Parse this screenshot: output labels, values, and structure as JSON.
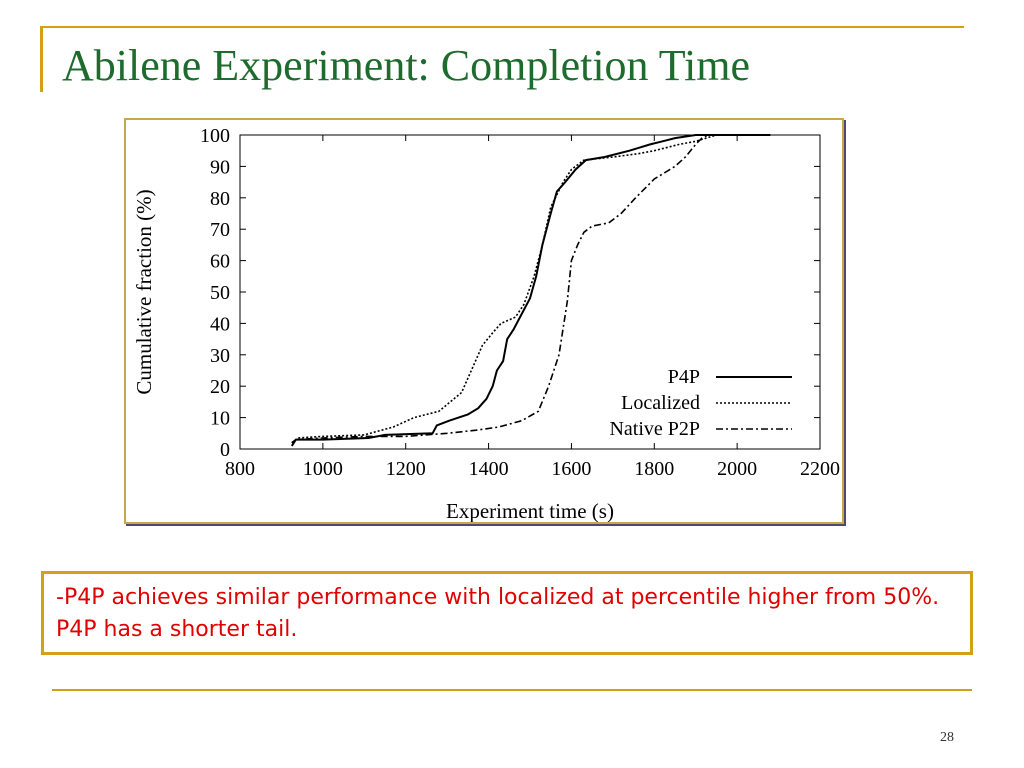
{
  "slide": {
    "title": "Abilene Experiment: Completion Time",
    "note": "-P4P achieves similar performance with localized at percentile higher from 50%. P4P has a shorter tail.",
    "page_number": "28"
  },
  "colors": {
    "title": "#1e6b2e",
    "accent": "#d4a017",
    "note_text": "#e00000",
    "frame_border": "#c8a64a"
  },
  "chart_data": {
    "type": "line",
    "title": "",
    "xlabel": "Experiment time (s)",
    "ylabel": "Cumulative fraction (%)",
    "xlim": [
      800,
      2200
    ],
    "ylim": [
      0,
      100
    ],
    "xticks": [
      800,
      1000,
      1200,
      1400,
      1600,
      1800,
      2000,
      2200
    ],
    "yticks": [
      0,
      10,
      20,
      30,
      40,
      50,
      60,
      70,
      80,
      90,
      100
    ],
    "grid": false,
    "legend_position": "bottom-right",
    "series": [
      {
        "name": "P4P",
        "style": "solid",
        "points": [
          [
            925,
            1
          ],
          [
            935,
            3
          ],
          [
            1000,
            3
          ],
          [
            1110,
            3.5
          ],
          [
            1150,
            4.5
          ],
          [
            1265,
            5
          ],
          [
            1275,
            7.5
          ],
          [
            1305,
            9
          ],
          [
            1350,
            11
          ],
          [
            1375,
            13
          ],
          [
            1395,
            16
          ],
          [
            1410,
            20
          ],
          [
            1420,
            25
          ],
          [
            1435,
            28
          ],
          [
            1445,
            35
          ],
          [
            1460,
            38
          ],
          [
            1480,
            43
          ],
          [
            1500,
            48
          ],
          [
            1515,
            55
          ],
          [
            1530,
            65
          ],
          [
            1550,
            75
          ],
          [
            1565,
            82
          ],
          [
            1585,
            85
          ],
          [
            1610,
            89
          ],
          [
            1635,
            92
          ],
          [
            1680,
            93
          ],
          [
            1740,
            95
          ],
          [
            1790,
            97
          ],
          [
            1820,
            98
          ],
          [
            1850,
            99
          ],
          [
            1900,
            100
          ],
          [
            2000,
            100
          ],
          [
            2080,
            100
          ]
        ]
      },
      {
        "name": "Localized",
        "style": "dotted",
        "points": [
          [
            925,
            2
          ],
          [
            940,
            3.5
          ],
          [
            1000,
            4
          ],
          [
            1100,
            4.5
          ],
          [
            1170,
            7
          ],
          [
            1220,
            10
          ],
          [
            1280,
            12
          ],
          [
            1335,
            18
          ],
          [
            1365,
            27
          ],
          [
            1385,
            33
          ],
          [
            1410,
            37
          ],
          [
            1430,
            40
          ],
          [
            1465,
            42
          ],
          [
            1485,
            46
          ],
          [
            1510,
            55
          ],
          [
            1530,
            65
          ],
          [
            1550,
            77
          ],
          [
            1565,
            81
          ],
          [
            1580,
            85
          ],
          [
            1600,
            89
          ],
          [
            1630,
            92
          ],
          [
            1700,
            93
          ],
          [
            1760,
            94
          ],
          [
            1800,
            95
          ],
          [
            1860,
            97
          ],
          [
            1900,
            98
          ],
          [
            1950,
            100
          ],
          [
            2080,
            100
          ]
        ]
      },
      {
        "name": "Native P2P",
        "style": "dashdot",
        "points": [
          [
            925,
            2
          ],
          [
            935,
            3
          ],
          [
            1000,
            3.5
          ],
          [
            1100,
            4
          ],
          [
            1200,
            4
          ],
          [
            1300,
            5
          ],
          [
            1370,
            6
          ],
          [
            1425,
            7
          ],
          [
            1480,
            9
          ],
          [
            1520,
            12
          ],
          [
            1545,
            20
          ],
          [
            1570,
            30
          ],
          [
            1590,
            47
          ],
          [
            1600,
            60
          ],
          [
            1615,
            65
          ],
          [
            1630,
            69
          ],
          [
            1650,
            71
          ],
          [
            1690,
            72
          ],
          [
            1720,
            75
          ],
          [
            1755,
            80
          ],
          [
            1800,
            86
          ],
          [
            1850,
            90
          ],
          [
            1875,
            93
          ],
          [
            1900,
            97
          ],
          [
            1915,
            99
          ],
          [
            1930,
            100
          ],
          [
            2080,
            100
          ]
        ]
      }
    ]
  }
}
